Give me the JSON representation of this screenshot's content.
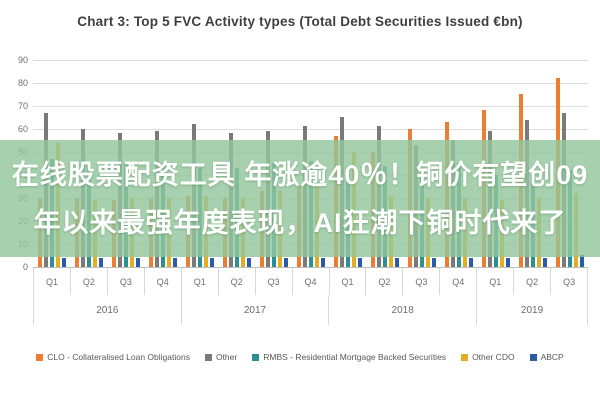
{
  "title": "Chart 3: Top 5 FVC Activity types (Total Debt Securities Issued €bn)",
  "overlay": {
    "line1": "在线股票配资工具 年涨逾40％！铜价有望创09",
    "line2": "年以来最强年度表现，AI狂潮下铜时代来了",
    "background_color": "#94c79c",
    "text_color": "#ffffff"
  },
  "chart_data": {
    "type": "bar",
    "title": "Chart 3: Top 5 FVC Activity types (Total Debt Securities Issued €bn)",
    "ylim": [
      0,
      90
    ],
    "ytick_step": 10,
    "yticks": [
      0,
      10,
      20,
      30,
      40,
      50,
      60,
      70,
      80,
      90
    ],
    "grid": "horizontal",
    "legend_position": "bottom",
    "categories": [
      "Q1",
      "Q2",
      "Q3",
      "Q4",
      "Q1",
      "Q2",
      "Q3",
      "Q4",
      "Q1",
      "Q2",
      "Q3",
      "Q4",
      "Q1",
      "Q2",
      "Q3"
    ],
    "year_groups": [
      {
        "label": "2016",
        "span": 4
      },
      {
        "label": "2017",
        "span": 4
      },
      {
        "label": "2018",
        "span": 4
      },
      {
        "label": "2019",
        "span": 3
      }
    ],
    "series": [
      {
        "name": "CLO",
        "legend_label": "CLO - Collateralised Loan Obligations",
        "color": "#ED7D31",
        "values": [
          30,
          30,
          29,
          30,
          31,
          30,
          33,
          35,
          57,
          50,
          60,
          63,
          68,
          75,
          82
        ]
      },
      {
        "name": "Other",
        "legend_label": "Other",
        "color": "#7A7A7A",
        "values": [
          67,
          60,
          58,
          59,
          62,
          58,
          59,
          61,
          65,
          61,
          53,
          55,
          59,
          64,
          67
        ]
      },
      {
        "name": "RMBS",
        "legend_label": "RMBS - Residential Mortgage Backed Securities",
        "color": "#2E8F93",
        "values": [
          47,
          44,
          45,
          45,
          43,
          43,
          45,
          46,
          44,
          44,
          42,
          45,
          40,
          40,
          42
        ]
      },
      {
        "name": "Other CDO",
        "legend_label": "Other CDO",
        "color": "#E3AE21",
        "values": [
          54,
          29,
          30,
          30,
          31,
          30,
          33,
          35,
          50,
          31,
          30,
          30,
          29,
          30,
          32
        ]
      },
      {
        "name": "ABCP",
        "legend_label": "ABCP",
        "color": "#2A5CAA",
        "values": [
          4,
          4,
          4,
          4,
          4,
          4,
          4,
          4,
          4,
          4,
          4,
          4,
          4,
          4,
          5
        ]
      }
    ]
  }
}
